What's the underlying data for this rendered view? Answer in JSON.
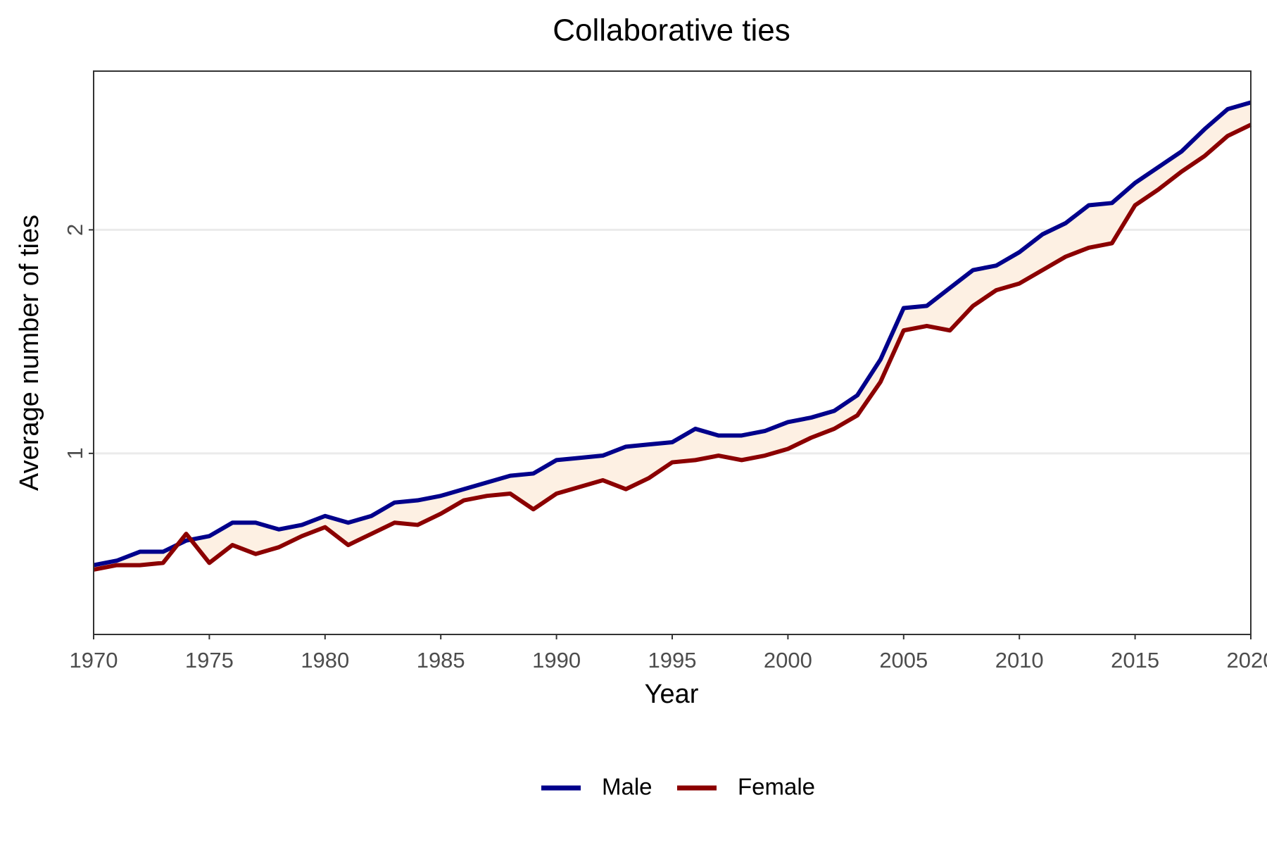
{
  "chart_data": {
    "type": "line",
    "title": "Collaborative ties",
    "x_label": "Year",
    "y_label": "Average number of ties",
    "x": [
      1970,
      1971,
      1972,
      1973,
      1974,
      1975,
      1976,
      1977,
      1978,
      1979,
      1980,
      1981,
      1982,
      1983,
      1984,
      1985,
      1986,
      1987,
      1988,
      1989,
      1990,
      1991,
      1992,
      1993,
      1994,
      1995,
      1996,
      1997,
      1998,
      1999,
      2000,
      2001,
      2002,
      2003,
      2004,
      2005,
      2006,
      2007,
      2008,
      2009,
      2010,
      2011,
      2012,
      2013,
      2014,
      2015,
      2016,
      2017,
      2018,
      2019,
      2020
    ],
    "series": [
      {
        "name": "Male",
        "color": "#00008b",
        "values": [
          0.5,
          0.52,
          0.56,
          0.56,
          0.61,
          0.63,
          0.69,
          0.69,
          0.66,
          0.68,
          0.72,
          0.69,
          0.72,
          0.78,
          0.79,
          0.81,
          0.84,
          0.87,
          0.9,
          0.91,
          0.97,
          0.98,
          0.99,
          1.03,
          1.04,
          1.05,
          1.11,
          1.08,
          1.08,
          1.1,
          1.14,
          1.16,
          1.19,
          1.26,
          1.42,
          1.65,
          1.66,
          1.74,
          1.82,
          1.84,
          1.9,
          1.98,
          2.03,
          2.11,
          2.12,
          2.21,
          2.28,
          2.35,
          2.45,
          2.54,
          2.57
        ]
      },
      {
        "name": "Female",
        "color": "#8b0000",
        "values": [
          0.48,
          0.5,
          0.5,
          0.51,
          0.64,
          0.51,
          0.59,
          0.55,
          0.58,
          0.63,
          0.67,
          0.59,
          0.64,
          0.69,
          0.68,
          0.73,
          0.79,
          0.81,
          0.82,
          0.75,
          0.82,
          0.85,
          0.88,
          0.84,
          0.89,
          0.96,
          0.97,
          0.99,
          0.97,
          0.99,
          1.02,
          1.07,
          1.11,
          1.17,
          1.32,
          1.55,
          1.57,
          1.55,
          1.66,
          1.73,
          1.76,
          1.82,
          1.88,
          1.92,
          1.94,
          2.11,
          2.18,
          2.26,
          2.33,
          2.42,
          2.47
        ]
      }
    ],
    "ribbon_color": "#fdf0e3",
    "xlim": [
      1970,
      2020
    ],
    "xticks": [
      1970,
      1975,
      1980,
      1985,
      1990,
      1995,
      2000,
      2005,
      2010,
      2015,
      2020
    ],
    "ylim": [
      0.19,
      2.71
    ],
    "yticks": [
      1,
      2
    ],
    "grid": true,
    "legend": "bottom"
  }
}
